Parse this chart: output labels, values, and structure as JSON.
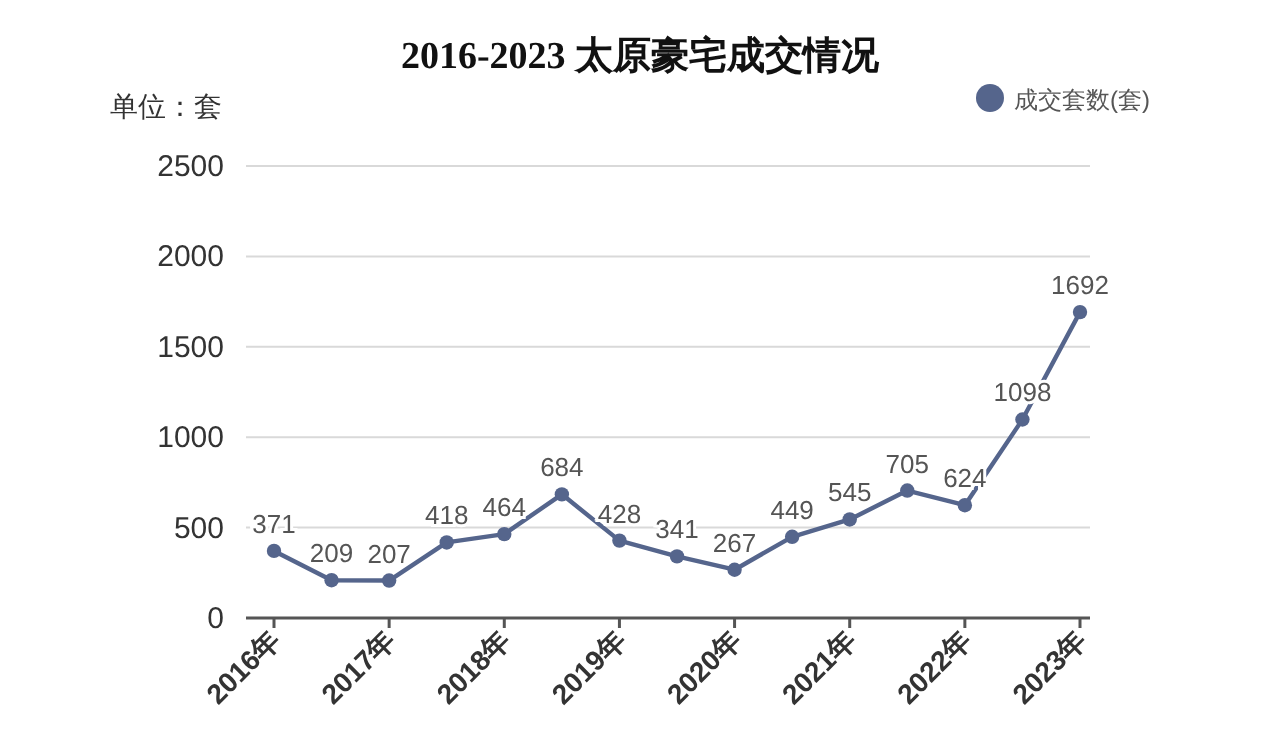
{
  "chart_data": {
    "type": "line",
    "title": "2016-2023 太原豪宅成交情况",
    "ylabel": "单位：套",
    "categories": [
      "2016年",
      null,
      "2017年",
      null,
      "2018年",
      null,
      "2019年",
      null,
      "2020年",
      null,
      "2021年",
      null,
      "2022年",
      null,
      "2023年"
    ],
    "series": [
      {
        "name": "成交套数(套)",
        "color": "#55658c",
        "values": [
          371,
          209,
          207,
          418,
          464,
          684,
          428,
          341,
          267,
          449,
          545,
          705,
          624,
          1098,
          1692
        ]
      }
    ],
    "ylim": [
      0,
      2500
    ],
    "yticks": [
      0,
      500,
      1000,
      1500,
      2000,
      2500
    ],
    "grid": "y",
    "legend": "top right",
    "marker": "circle",
    "data_labels": true
  }
}
